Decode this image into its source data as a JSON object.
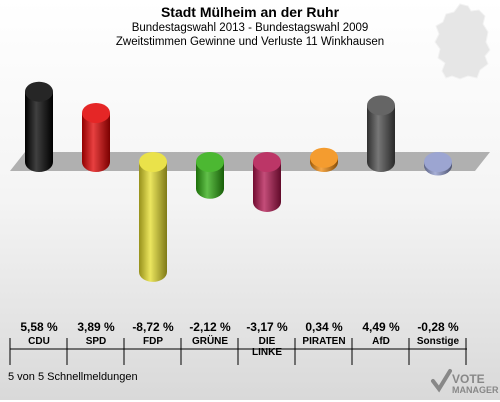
{
  "header": {
    "title": "Stadt Mülheim an der Ruhr",
    "subtitle": "Bundestagswahl 2013 - Bundestagswahl 2009",
    "subtitle2": "Zweitstimmen Gewinne und Verluste 11 Winkhausen"
  },
  "footer": {
    "text": "5 von 5 Schnellmeldungen"
  },
  "logo": {
    "line1": "VOTE",
    "line2": "MANAGER"
  },
  "chart_data": {
    "type": "bar",
    "categories": [
      "CDU",
      "SPD",
      "FDP",
      "GRÜNE",
      "DIE LINKE",
      "PIRATEN",
      "AfD",
      "Sonstige"
    ],
    "label_lines": [
      [
        "CDU"
      ],
      [
        "SPD"
      ],
      [
        "FDP"
      ],
      [
        "GRÜNE"
      ],
      [
        "DIE",
        "LINKE"
      ],
      [
        "PIRATEN"
      ],
      [
        "AfD"
      ],
      [
        "Sonstige"
      ]
    ],
    "values": [
      5.58,
      3.89,
      -8.72,
      -2.12,
      -3.17,
      0.34,
      4.49,
      -0.28
    ],
    "value_labels": [
      "5,58 %",
      "3,89 %",
      "-8,72 %",
      "-2,12 %",
      "-3,17 %",
      "0,34 %",
      "4,49 %",
      "-0,28 %"
    ],
    "colors": [
      "#000000",
      "#e00000",
      "#e6dd2a",
      "#2cab0e",
      "#b0124c",
      "#f28a0a",
      "#4a4a4a",
      "#8b95c9"
    ],
    "grid": false,
    "legend": "none"
  }
}
